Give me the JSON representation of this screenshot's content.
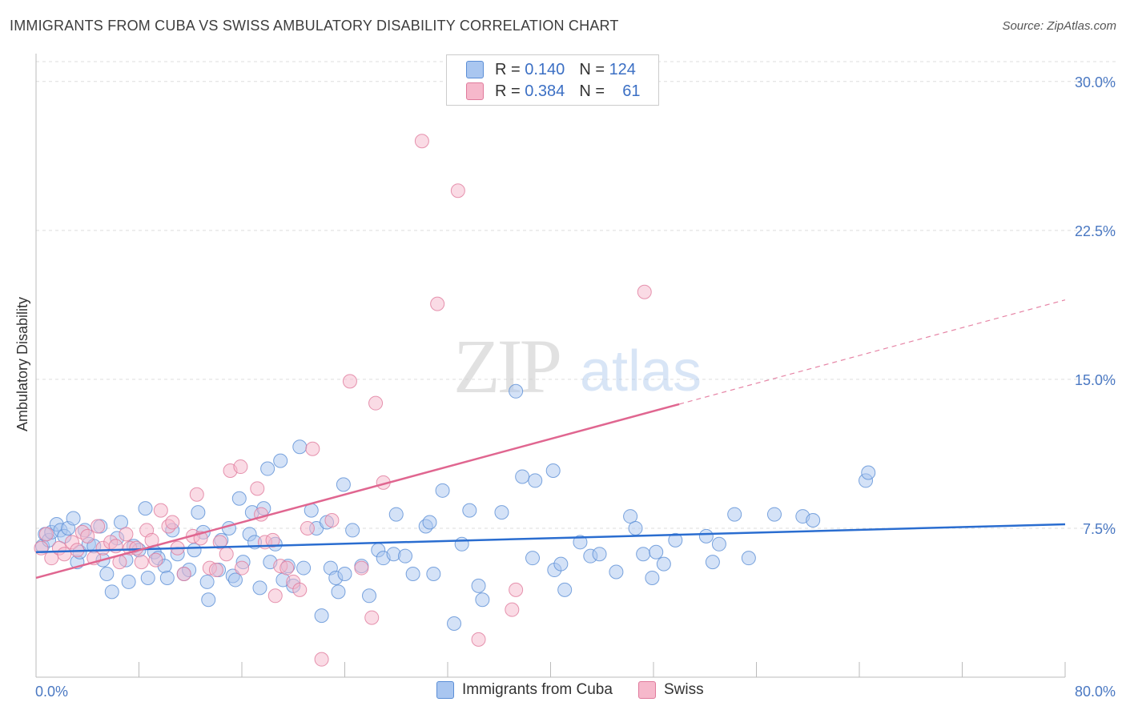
{
  "header": {
    "title": "IMMIGRANTS FROM CUBA VS SWISS AMBULATORY DISABILITY CORRELATION CHART",
    "source": "Source: ZipAtlas.com"
  },
  "watermark": {
    "zip": "ZIP",
    "atlas": "atlas"
  },
  "legend": {
    "rows": [
      {
        "r_label": "R =",
        "r_value": "0.140",
        "n_label": "N =",
        "n_value": "124",
        "color": "#a9c6f0"
      },
      {
        "r_label": "R =",
        "r_value": "0.384",
        "n_label": "N =",
        "n_value": "61",
        "color": "#f6b8cb"
      }
    ]
  },
  "bottom_legend": {
    "items": [
      {
        "label": "Immigrants from Cuba",
        "color": "#a9c6f0"
      },
      {
        "label": "Swiss",
        "color": "#f6b8cb"
      }
    ]
  },
  "chart_data": {
    "type": "scatter",
    "title": "IMMIGRANTS FROM CUBA VS SWISS AMBULATORY DISABILITY CORRELATION CHART",
    "xlabel": "",
    "ylabel": "Ambulatory Disability",
    "xlim": [
      0,
      80
    ],
    "ylim": [
      0,
      31
    ],
    "y_ticks": [
      {
        "value": 7.5,
        "label": "7.5%"
      },
      {
        "value": 15.0,
        "label": "15.0%"
      },
      {
        "value": 22.5,
        "label": "22.5%"
      },
      {
        "value": 30.0,
        "label": "30.0%"
      }
    ],
    "x_tick_labels": [
      {
        "value": 0,
        "label": "0.0%"
      },
      {
        "value": 80,
        "label": "80.0%"
      }
    ],
    "x_minor_ticks": [
      8,
      16,
      24,
      32,
      40,
      48,
      56,
      64,
      72,
      80
    ],
    "grid": true,
    "colors": {
      "cuba_fill": "#a9c6f0",
      "cuba_stroke": "#5b8ed6",
      "cuba_line": "#2a6dd0",
      "swiss_fill": "#f6b8cb",
      "swiss_stroke": "#e07a9c",
      "swiss_line": "#e06690"
    },
    "series": [
      {
        "name": "Immigrants from Cuba",
        "trend": {
          "x0": 0,
          "y0": 6.3,
          "x1": 80,
          "y1": 7.7,
          "dashed_from": null
        },
        "points": [
          [
            0.5,
            6.6
          ],
          [
            0.7,
            7.2
          ],
          [
            1.0,
            6.9
          ],
          [
            1.2,
            7.3
          ],
          [
            1.6,
            7.7
          ],
          [
            1.9,
            7.4
          ],
          [
            2.2,
            7.1
          ],
          [
            2.5,
            7.5
          ],
          [
            2.9,
            8.0
          ],
          [
            3.2,
            5.8
          ],
          [
            3.4,
            6.3
          ],
          [
            3.8,
            7.4
          ],
          [
            4.1,
            6.7
          ],
          [
            4.5,
            6.6
          ],
          [
            5.0,
            7.6
          ],
          [
            5.2,
            5.9
          ],
          [
            5.5,
            5.2
          ],
          [
            5.9,
            4.3
          ],
          [
            6.3,
            7.0
          ],
          [
            6.6,
            7.8
          ],
          [
            7.0,
            5.9
          ],
          [
            7.2,
            4.8
          ],
          [
            7.6,
            6.6
          ],
          [
            8.0,
            6.4
          ],
          [
            8.5,
            8.5
          ],
          [
            8.7,
            5.0
          ],
          [
            9.2,
            6.3
          ],
          [
            9.5,
            6.0
          ],
          [
            10.0,
            5.6
          ],
          [
            10.2,
            5.0
          ],
          [
            10.6,
            7.4
          ],
          [
            11.0,
            6.2
          ],
          [
            11.5,
            5.2
          ],
          [
            11.9,
            5.4
          ],
          [
            12.3,
            6.4
          ],
          [
            12.6,
            8.3
          ],
          [
            13.0,
            7.3
          ],
          [
            13.4,
            3.9
          ],
          [
            13.3,
            4.8
          ],
          [
            14.2,
            5.4
          ],
          [
            14.4,
            6.9
          ],
          [
            15.0,
            7.5
          ],
          [
            15.3,
            5.1
          ],
          [
            15.5,
            4.9
          ],
          [
            15.8,
            9.0
          ],
          [
            16.1,
            5.8
          ],
          [
            16.6,
            7.2
          ],
          [
            16.8,
            8.3
          ],
          [
            17.0,
            6.8
          ],
          [
            17.4,
            4.5
          ],
          [
            17.7,
            8.5
          ],
          [
            18.0,
            10.5
          ],
          [
            18.2,
            5.8
          ],
          [
            18.6,
            6.7
          ],
          [
            19.0,
            10.9
          ],
          [
            19.2,
            4.9
          ],
          [
            19.6,
            5.6
          ],
          [
            20.0,
            4.6
          ],
          [
            20.5,
            11.6
          ],
          [
            20.8,
            5.5
          ],
          [
            21.4,
            8.4
          ],
          [
            21.8,
            7.5
          ],
          [
            22.2,
            3.1
          ],
          [
            22.6,
            7.8
          ],
          [
            22.9,
            5.5
          ],
          [
            23.3,
            5.0
          ],
          [
            23.5,
            4.3
          ],
          [
            23.9,
            9.7
          ],
          [
            24.0,
            5.2
          ],
          [
            24.6,
            7.4
          ],
          [
            25.3,
            5.6
          ],
          [
            25.9,
            4.1
          ],
          [
            26.6,
            6.4
          ],
          [
            27.0,
            6.0
          ],
          [
            27.8,
            6.2
          ],
          [
            28.0,
            8.2
          ],
          [
            28.7,
            6.1
          ],
          [
            29.3,
            5.2
          ],
          [
            30.3,
            7.6
          ],
          [
            30.6,
            7.8
          ],
          [
            30.9,
            5.2
          ],
          [
            31.6,
            9.4
          ],
          [
            32.5,
            2.7
          ],
          [
            33.1,
            6.7
          ],
          [
            33.7,
            8.4
          ],
          [
            34.4,
            4.6
          ],
          [
            34.7,
            3.9
          ],
          [
            36.2,
            8.3
          ],
          [
            37.3,
            14.4
          ],
          [
            37.8,
            10.1
          ],
          [
            38.8,
            9.9
          ],
          [
            38.6,
            6.0
          ],
          [
            40.2,
            10.4
          ],
          [
            40.3,
            5.4
          ],
          [
            40.8,
            5.7
          ],
          [
            41.1,
            4.4
          ],
          [
            42.3,
            6.8
          ],
          [
            43.1,
            6.1
          ],
          [
            43.8,
            6.2
          ],
          [
            45.1,
            5.3
          ],
          [
            46.2,
            8.1
          ],
          [
            46.6,
            7.5
          ],
          [
            47.2,
            6.2
          ],
          [
            47.9,
            5.0
          ],
          [
            48.2,
            6.3
          ],
          [
            48.8,
            5.7
          ],
          [
            49.7,
            6.9
          ],
          [
            52.1,
            7.1
          ],
          [
            52.6,
            5.8
          ],
          [
            53.1,
            6.7
          ],
          [
            54.3,
            8.2
          ],
          [
            55.4,
            6.0
          ],
          [
            57.4,
            8.2
          ],
          [
            59.6,
            8.1
          ],
          [
            60.4,
            7.9
          ],
          [
            64.5,
            9.9
          ],
          [
            64.7,
            10.3
          ]
        ]
      },
      {
        "name": "Swiss",
        "trend": {
          "x0": 0,
          "y0": 5.0,
          "x1": 80,
          "y1": 19.0,
          "dashed_from": 50
        },
        "points": [
          [
            0.4,
            6.5
          ],
          [
            0.8,
            7.2
          ],
          [
            1.2,
            6.0
          ],
          [
            1.8,
            6.5
          ],
          [
            2.2,
            6.2
          ],
          [
            2.8,
            6.8
          ],
          [
            3.2,
            6.4
          ],
          [
            3.6,
            7.3
          ],
          [
            4.0,
            7.1
          ],
          [
            4.5,
            6.0
          ],
          [
            4.8,
            7.6
          ],
          [
            5.2,
            6.5
          ],
          [
            5.8,
            6.8
          ],
          [
            6.2,
            6.6
          ],
          [
            6.5,
            5.8
          ],
          [
            7.0,
            7.2
          ],
          [
            7.3,
            6.5
          ],
          [
            7.8,
            6.5
          ],
          [
            8.2,
            5.8
          ],
          [
            8.6,
            7.4
          ],
          [
            9.0,
            6.9
          ],
          [
            9.3,
            5.9
          ],
          [
            9.7,
            8.4
          ],
          [
            10.3,
            7.6
          ],
          [
            10.6,
            7.8
          ],
          [
            11.0,
            6.5
          ],
          [
            11.5,
            5.2
          ],
          [
            12.2,
            7.1
          ],
          [
            12.5,
            9.2
          ],
          [
            12.8,
            7.0
          ],
          [
            13.5,
            5.5
          ],
          [
            14.0,
            5.4
          ],
          [
            14.3,
            6.8
          ],
          [
            14.8,
            6.2
          ],
          [
            15.1,
            10.4
          ],
          [
            15.9,
            10.6
          ],
          [
            16.0,
            5.5
          ],
          [
            17.2,
            9.5
          ],
          [
            17.5,
            8.2
          ],
          [
            17.8,
            6.8
          ],
          [
            18.4,
            6.9
          ],
          [
            18.6,
            4.1
          ],
          [
            19.0,
            5.6
          ],
          [
            19.5,
            5.5
          ],
          [
            20.0,
            4.8
          ],
          [
            20.5,
            4.4
          ],
          [
            21.1,
            7.5
          ],
          [
            21.5,
            11.5
          ],
          [
            22.2,
            0.9
          ],
          [
            23.0,
            7.9
          ],
          [
            24.4,
            14.9
          ],
          [
            25.3,
            5.5
          ],
          [
            26.1,
            3.0
          ],
          [
            26.4,
            13.8
          ],
          [
            27.0,
            9.8
          ],
          [
            30.0,
            27.0
          ],
          [
            31.2,
            18.8
          ],
          [
            32.8,
            24.5
          ],
          [
            34.4,
            1.9
          ],
          [
            37.0,
            3.4
          ],
          [
            37.3,
            4.4
          ],
          [
            47.3,
            19.4
          ]
        ]
      }
    ]
  }
}
